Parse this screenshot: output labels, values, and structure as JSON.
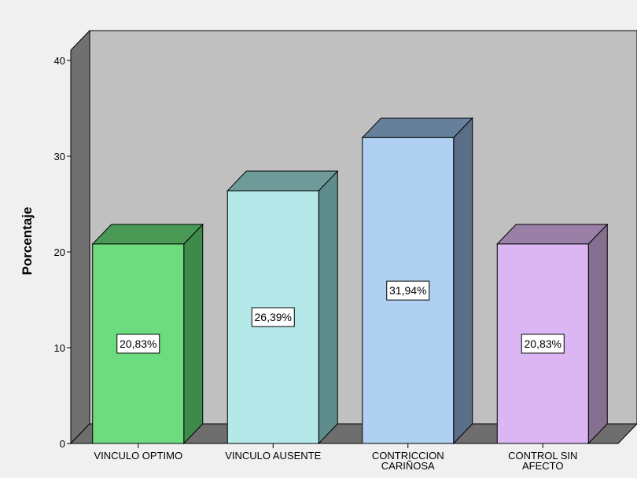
{
  "chart_data": {
    "type": "bar",
    "style": "3d",
    "ylabel": "Porcentaje",
    "xlabel": "",
    "ylim": [
      0,
      40
    ],
    "yticks": [
      "0",
      "10",
      "20",
      "30",
      "40"
    ],
    "categories": [
      [
        "VINCULO OPTIMO"
      ],
      [
        "VINCULO AUSENTE"
      ],
      [
        "CONTRICCION",
        "CARIÑOSA"
      ],
      [
        "CONTROL SIN",
        "AFECTO"
      ]
    ],
    "values": [
      20.83,
      26.39,
      31.94,
      20.83
    ],
    "data_labels": [
      "20,83%",
      "26,39%",
      "31,94%",
      "20,83%"
    ],
    "colors": [
      {
        "front": "#6ddc7e",
        "side": "#3e8a4a",
        "top": "#4a9a56"
      },
      {
        "front": "#b5e8e8",
        "side": "#5f8c8c",
        "top": "#6e9a9a"
      },
      {
        "front": "#afd0f0",
        "side": "#5a6e88",
        "top": "#66809c"
      },
      {
        "front": "#dcb6f3",
        "side": "#85708f",
        "top": "#9a80a6"
      }
    ],
    "grid": false,
    "background": {
      "wall": "#c0c0c0",
      "side_wall": "#707070",
      "floor": "#6e6e6e"
    }
  }
}
